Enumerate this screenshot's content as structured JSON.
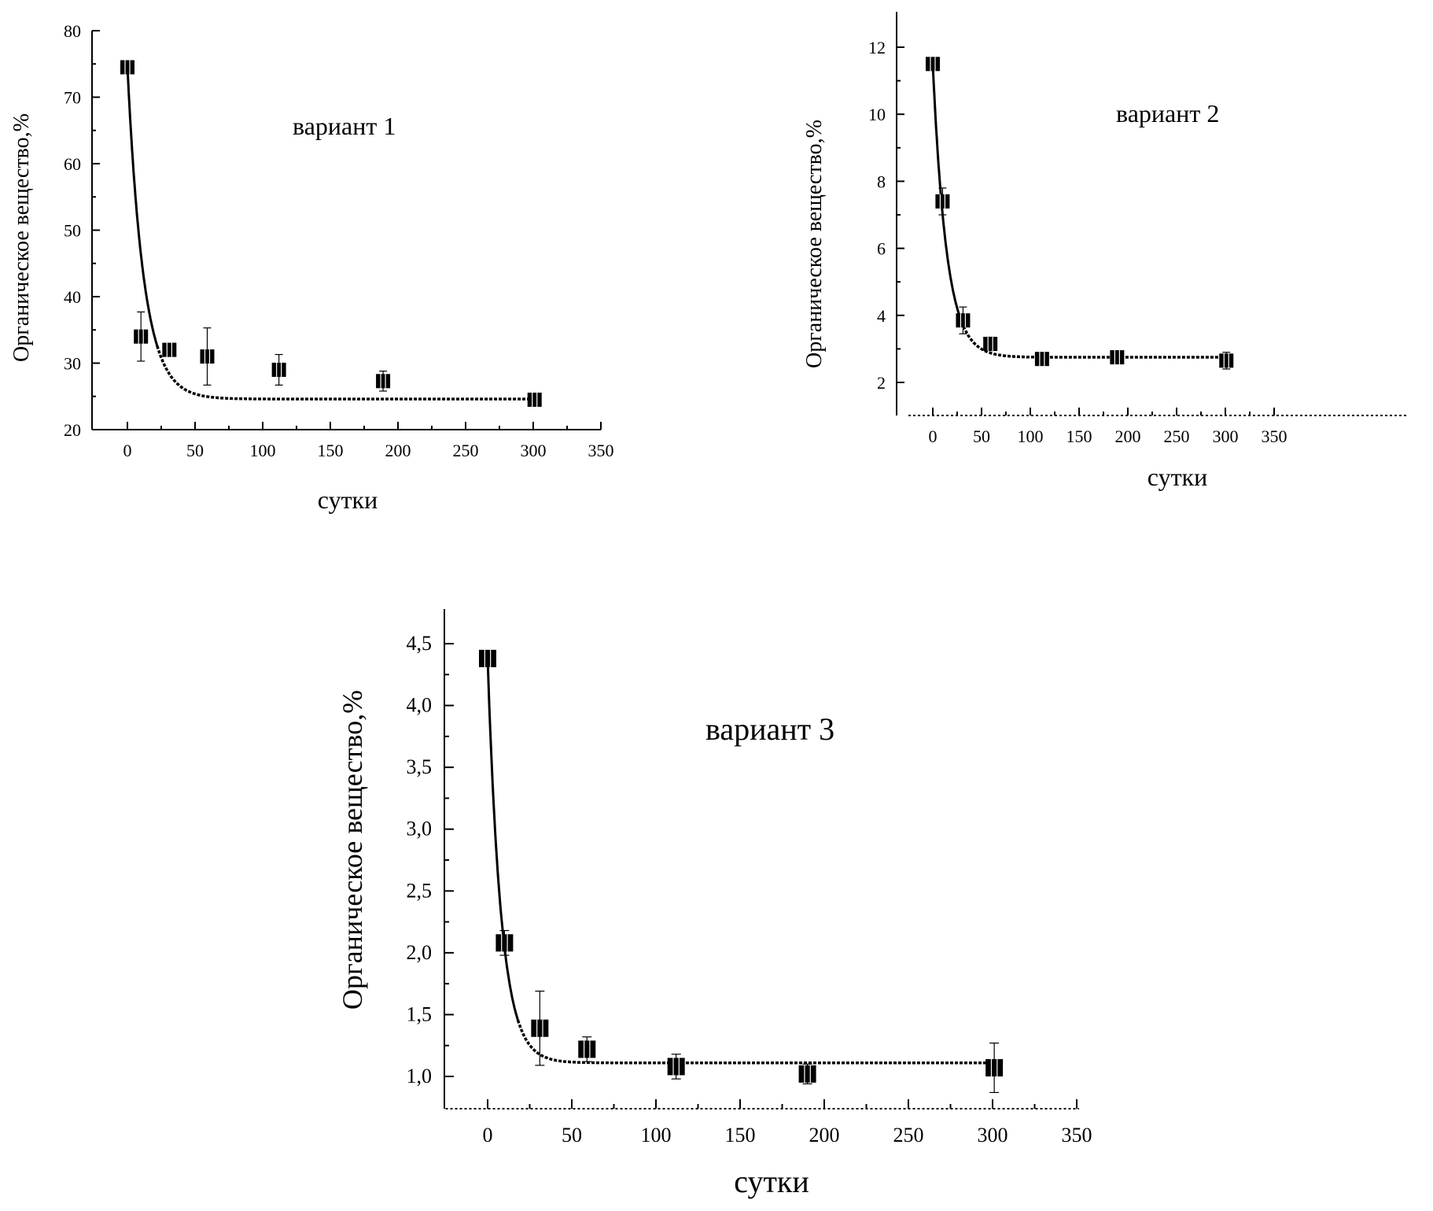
{
  "chart_data": [
    {
      "type": "scatter",
      "annotation": "вариант 1",
      "xlabel": "сутки",
      "ylabel": "Органическое вещество,%",
      "xlim": [
        -25,
        350
      ],
      "ylim": [
        20,
        80
      ],
      "xticks": [
        0,
        50,
        100,
        150,
        200,
        250,
        300,
        350
      ],
      "yticks": [
        20,
        30,
        40,
        50,
        60,
        70,
        80
      ],
      "ytick_labels": [
        "20",
        "30",
        "40",
        "50",
        "60",
        "70",
        "80"
      ],
      "points": [
        {
          "x": 0,
          "y": 74.5,
          "err": 0
        },
        {
          "x": 10,
          "y": 34,
          "err": 3.7
        },
        {
          "x": 31,
          "y": 32,
          "err": 0.8
        },
        {
          "x": 59,
          "y": 31,
          "err": 4.3
        },
        {
          "x": 112,
          "y": 29,
          "err": 2.3
        },
        {
          "x": 189,
          "y": 27.3,
          "err": 1.5
        },
        {
          "x": 301,
          "y": 24.5,
          "err": 0
        }
      ],
      "fit": {
        "y0": 24.6,
        "a": 50,
        "tau": 12,
        "x_from": 0,
        "x_to": 300,
        "solid_until": 22
      }
    },
    {
      "type": "scatter",
      "annotation": "вариант 2",
      "xlabel": "сутки",
      "ylabel": "Органическое вещество,%",
      "xlim": [
        -25,
        350
      ],
      "ylim": [
        1,
        13
      ],
      "xticks": [
        0,
        50,
        100,
        150,
        200,
        250,
        300,
        350
      ],
      "yticks": [
        2,
        4,
        6,
        8,
        10,
        12
      ],
      "ytick_labels": [
        "2",
        "4",
        "6",
        "8",
        "10",
        "12"
      ],
      "points": [
        {
          "x": 0,
          "y": 11.5,
          "err": 0
        },
        {
          "x": 10,
          "y": 7.4,
          "err": 0.4
        },
        {
          "x": 31,
          "y": 3.85,
          "err": 0.4
        },
        {
          "x": 59,
          "y": 3.15,
          "err": 0.2
        },
        {
          "x": 112,
          "y": 2.7,
          "err": 0.15
        },
        {
          "x": 189,
          "y": 2.75,
          "err": 0.15
        },
        {
          "x": 301,
          "y": 2.65,
          "err": 0.25
        }
      ],
      "fit": {
        "y0": 2.75,
        "a": 8.75,
        "tau": 14,
        "x_from": 0,
        "x_to": 300,
        "solid_until": 28
      }
    },
    {
      "type": "scatter",
      "annotation": "вариант 3",
      "xlabel": "сутки",
      "ylabel": "Органическое вещество,%",
      "xlim": [
        -25,
        350
      ],
      "ylim": [
        0.75,
        4.75
      ],
      "xticks": [
        0,
        50,
        100,
        150,
        200,
        250,
        300,
        350
      ],
      "yticks": [
        1.0,
        1.5,
        2.0,
        2.5,
        3.0,
        3.5,
        4.0,
        4.5
      ],
      "ytick_labels": [
        "1,0",
        "1,5",
        "2,0",
        "2,5",
        "3,0",
        "3,5",
        "4,0",
        "4,5"
      ],
      "points": [
        {
          "x": 0,
          "y": 4.38,
          "err": 0
        },
        {
          "x": 10,
          "y": 2.08,
          "err": 0.1
        },
        {
          "x": 31,
          "y": 1.39,
          "err": 0.3
        },
        {
          "x": 59,
          "y": 1.22,
          "err": 0.1
        },
        {
          "x": 112,
          "y": 1.08,
          "err": 0.1
        },
        {
          "x": 190,
          "y": 1.02,
          "err": 0.08
        },
        {
          "x": 301,
          "y": 1.07,
          "err": 0.2
        }
      ],
      "fit": {
        "y0": 1.11,
        "a": 3.27,
        "tau": 8,
        "x_from": 0,
        "x_to": 300,
        "solid_until": 18
      }
    }
  ]
}
